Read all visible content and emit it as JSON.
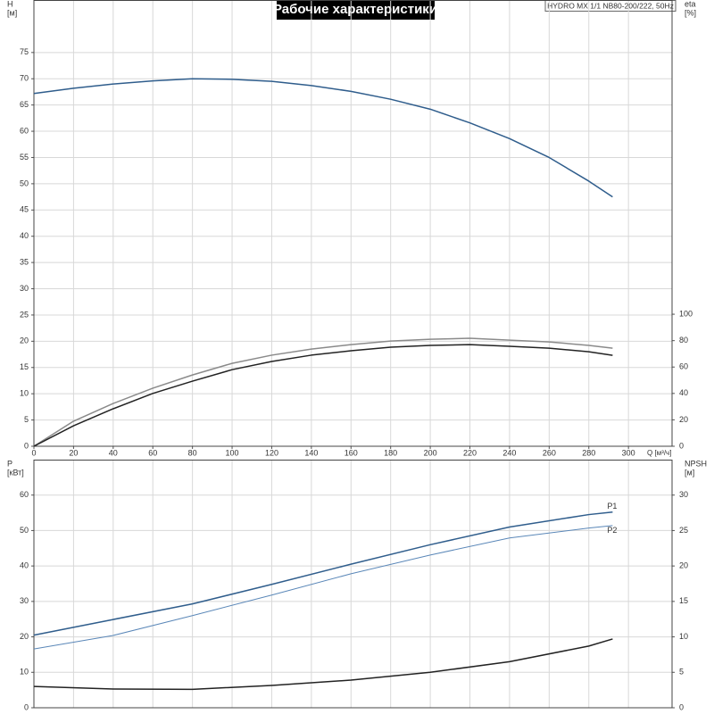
{
  "chart_data": [
    {
      "type": "line",
      "title": "Рабочие характеристики",
      "subtitle": "HYDRO MX 1/1 NB80-200/222, 50Hz",
      "xlabel": "Q [м³/ч]",
      "ylabel": [
        "H",
        "[м]"
      ],
      "y2label": [
        "eta",
        "[%]"
      ],
      "xlim": [
        0,
        322
      ],
      "xticks": [
        0,
        20,
        40,
        60,
        80,
        100,
        120,
        140,
        160,
        180,
        200,
        220,
        240,
        260,
        280,
        300
      ],
      "ylim": [
        0,
        85
      ],
      "yticks": [
        0,
        5,
        10,
        15,
        20,
        25,
        30,
        35,
        40,
        45,
        50,
        55,
        60,
        65,
        70,
        75
      ],
      "y2lim": [
        0,
        338
      ],
      "y2ticks": [
        0,
        20,
        40,
        60,
        80,
        100
      ],
      "grid": true,
      "x": [
        0,
        20,
        40,
        60,
        80,
        100,
        120,
        140,
        160,
        180,
        200,
        220,
        240,
        260,
        280,
        292
      ],
      "series": [
        {
          "color": "#2f5d8c",
          "values": [
            67.2,
            68.2,
            69.0,
            69.6,
            70.0,
            69.9,
            69.5,
            68.7,
            67.6,
            66.1,
            64.2,
            61.6,
            58.6,
            55.0,
            50.5,
            47.5
          ]
        },
        {
          "color": "#8a8a8a",
          "axis": "y2",
          "values": [
            0,
            19,
            32.4,
            44,
            54,
            62.8,
            69,
            73.6,
            77,
            79.7,
            81,
            81.8,
            80.4,
            79,
            76.4,
            74.3
          ]
        },
        {
          "color": "#222222",
          "axis": "y2",
          "values": [
            0,
            15.5,
            28.4,
            40,
            49.3,
            58,
            64.2,
            69,
            72.3,
            75,
            76.4,
            77,
            75.7,
            74.3,
            71.6,
            68.9
          ]
        }
      ]
    },
    {
      "type": "line",
      "ylabel": [
        "P",
        "[кВт]"
      ],
      "y2label": [
        "NPSH",
        "[м]"
      ],
      "xlim": [
        0,
        322
      ],
      "ylim": [
        0,
        70
      ],
      "yticks": [
        0,
        10,
        20,
        30,
        40,
        50,
        60
      ],
      "y2lim": [
        0,
        35
      ],
      "y2ticks": [
        0,
        5,
        10,
        15,
        20,
        25,
        30
      ],
      "grid": true,
      "x": [
        0,
        40,
        80,
        120,
        160,
        200,
        240,
        280,
        292
      ],
      "series": [
        {
          "name": "P1",
          "color": "#2f5d8c",
          "values": [
            20.5,
            24.9,
            29.3,
            34.8,
            40.5,
            46,
            51,
            54.5,
            55.2
          ]
        },
        {
          "name": "P2",
          "color": "#5a87b8",
          "values": [
            16.6,
            20.4,
            26,
            31.8,
            37.8,
            43.1,
            47.9,
            50.7,
            51.4
          ]
        },
        {
          "color": "#222222",
          "axis": "y2",
          "values": [
            3.0,
            2.65,
            2.6,
            3.15,
            3.9,
            5.0,
            6.5,
            8.7,
            9.7
          ]
        }
      ]
    }
  ]
}
